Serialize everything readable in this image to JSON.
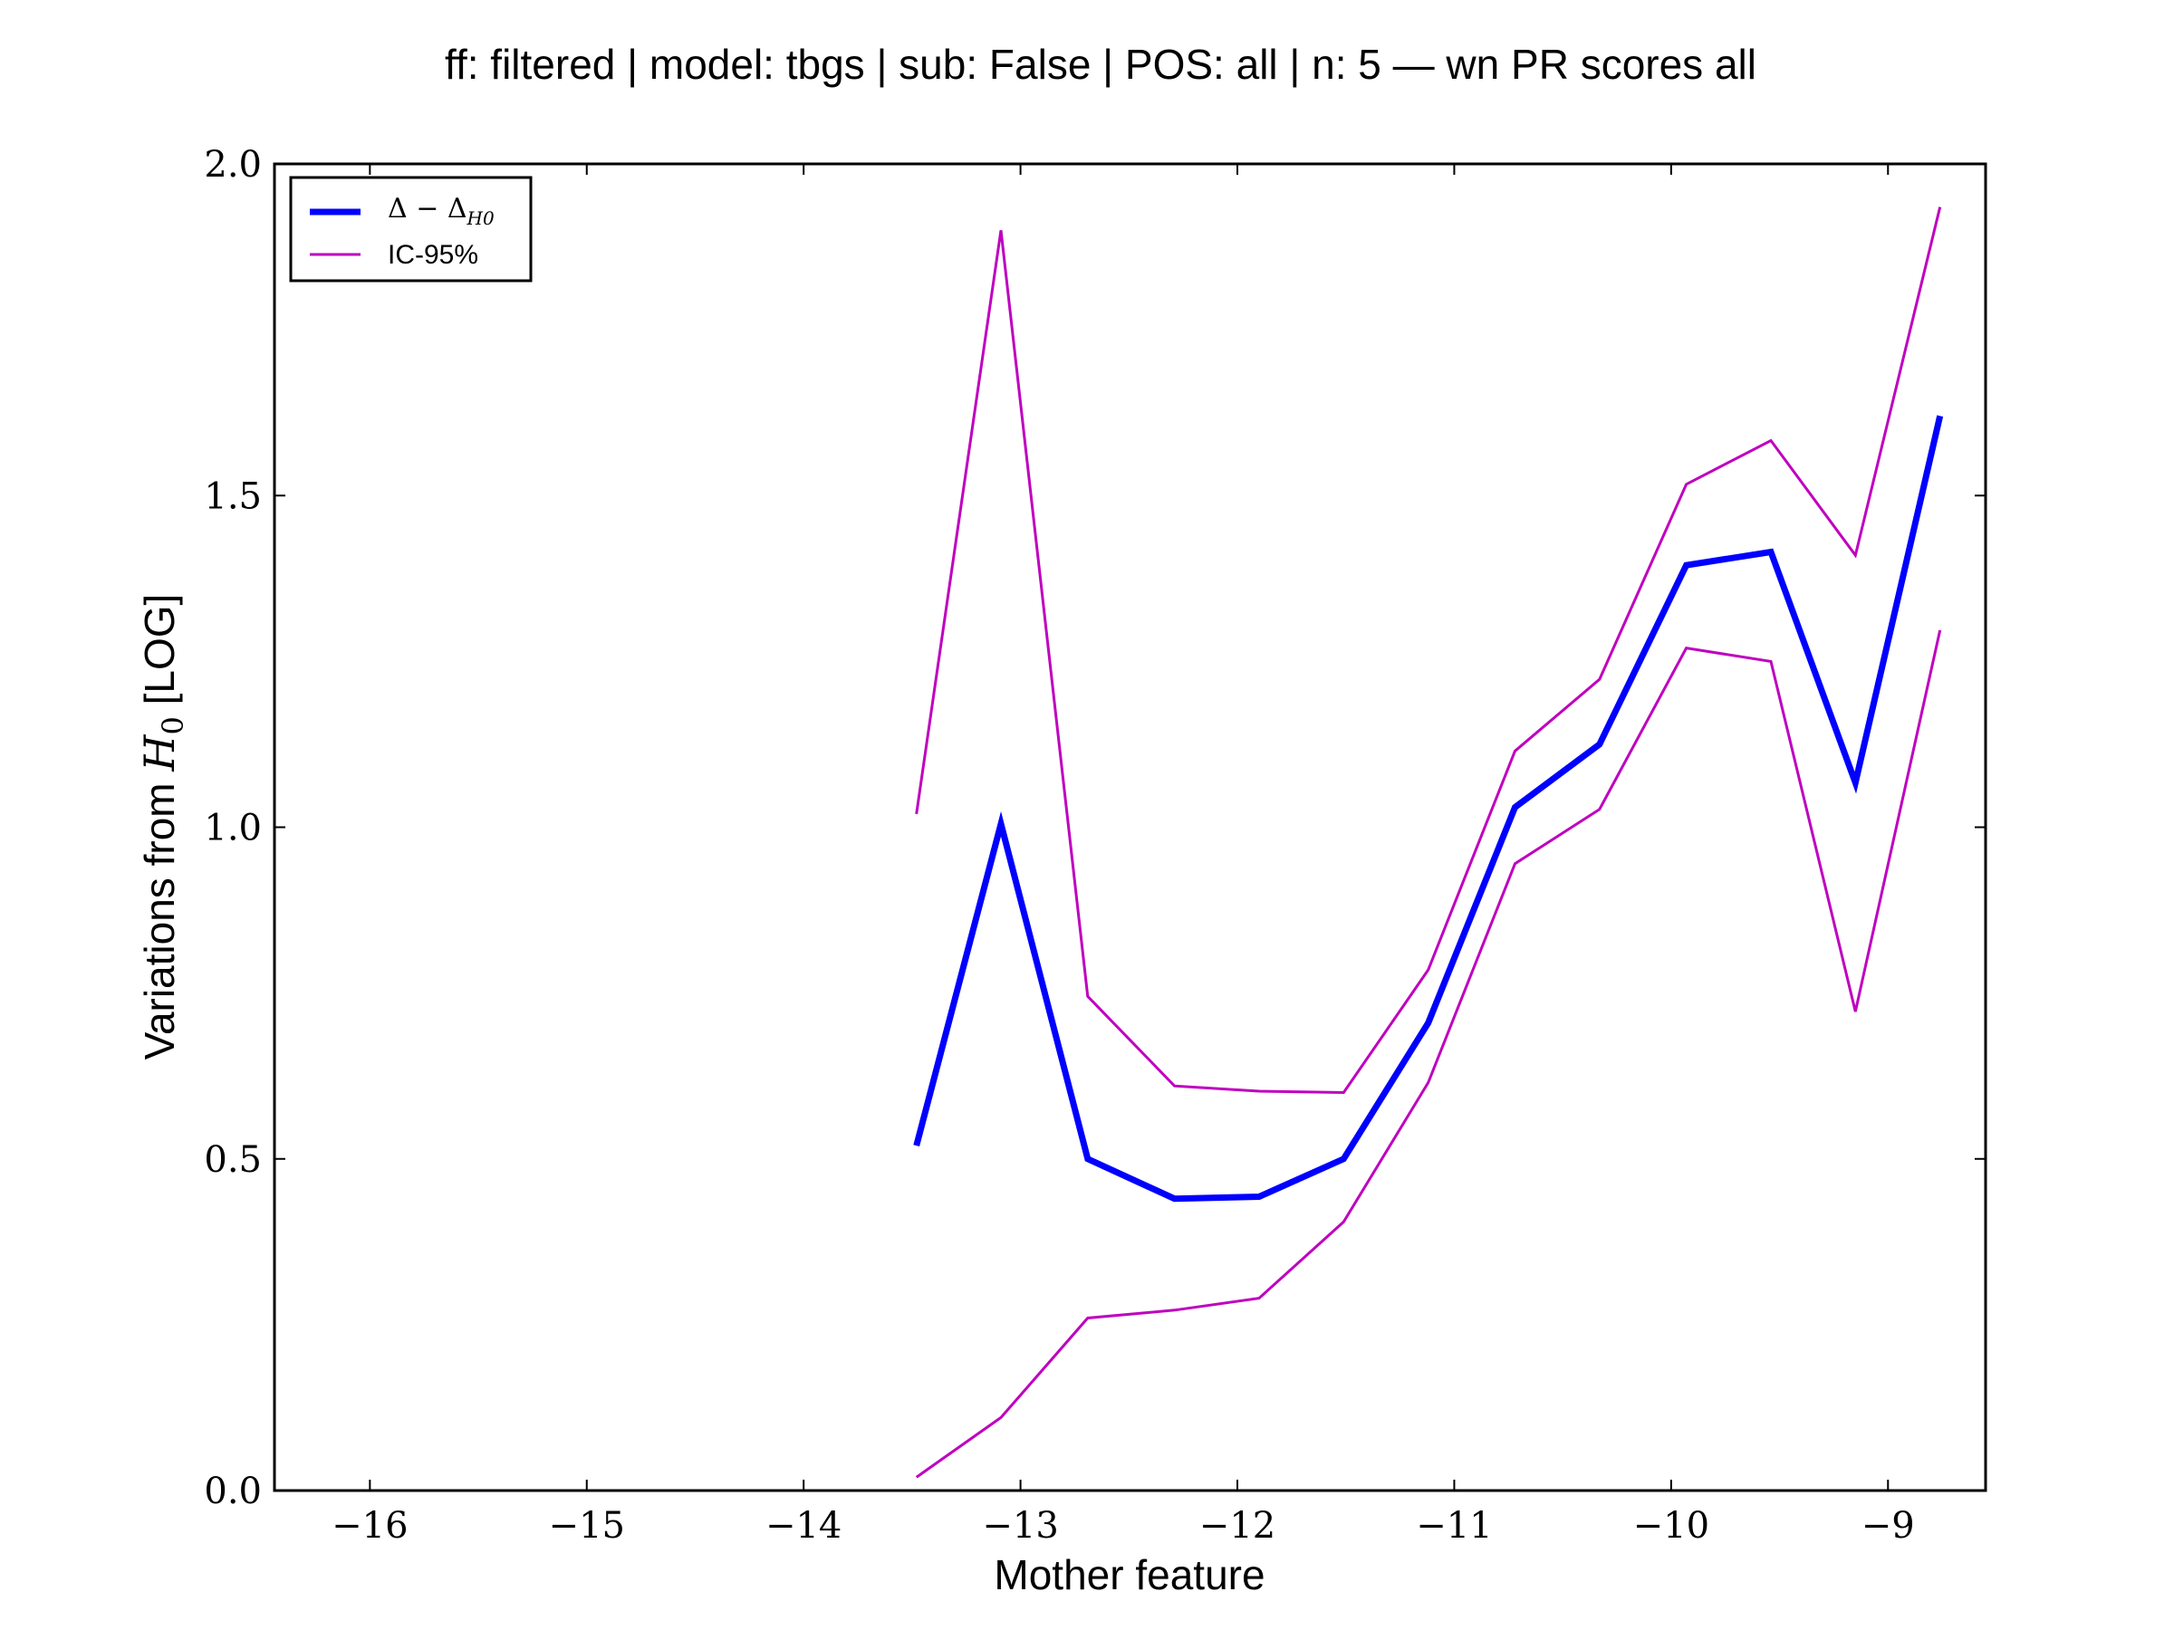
{
  "chart_data": {
    "type": "line",
    "title": "ff: filtered | model: tbgs | sub: False | POS: all | n: 5 — wn PR scores all",
    "xlabel": "Mother feature",
    "ylabel_prefix": "Variations from ",
    "ylabel_symbol": "H",
    "ylabel_subscript": "0",
    "ylabel_suffix": " [LOG]",
    "xlim": [
      -16.44,
      -8.55
    ],
    "ylim": [
      0.0,
      2.0
    ],
    "xticks": [
      -16,
      -15,
      -14,
      -13,
      -12,
      -11,
      -10,
      -9
    ],
    "xtick_labels": [
      "−16",
      "−15",
      "−14",
      "−13",
      "−12",
      "−11",
      "−10",
      "−9"
    ],
    "yticks": [
      0.0,
      0.5,
      1.0,
      1.5,
      2.0
    ],
    "ytick_labels": [
      "0.0",
      "0.5",
      "1.0",
      "1.5",
      "2.0"
    ],
    "grid": false,
    "legend_position": "top-left",
    "x": [
      -13.48,
      -13.09,
      -12.69,
      -12.29,
      -11.9,
      -11.51,
      -11.12,
      -10.72,
      -10.33,
      -9.93,
      -9.54,
      -9.15,
      -8.76
    ],
    "series": [
      {
        "name": "Δ − Δ",
        "name_subscript": "H0",
        "color": "#0000ff",
        "style": "thick",
        "values": [
          0.52,
          1.005,
          0.5,
          0.44,
          0.443,
          0.5,
          0.705,
          1.03,
          1.125,
          1.395,
          1.415,
          1.067,
          1.62
        ]
      },
      {
        "name": "IC-95%",
        "color": "#bf00bf",
        "style": "thin",
        "values": [
          1.02,
          1.9,
          0.745,
          0.61,
          0.602,
          0.6,
          0.785,
          1.115,
          1.223,
          1.517,
          1.583,
          1.41,
          1.935
        ]
      },
      {
        "name_hidden": "IC-95% lower",
        "color": "#bf00bf",
        "style": "thin",
        "values": [
          0.02,
          0.11,
          0.26,
          0.272,
          0.29,
          0.405,
          0.615,
          0.945,
          1.027,
          1.27,
          1.25,
          0.722,
          1.297
        ]
      }
    ]
  }
}
